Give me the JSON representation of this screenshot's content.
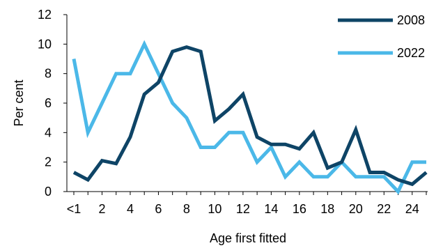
{
  "chart_data": {
    "type": "line",
    "x_tick_labels": [
      "<1",
      "2",
      "4",
      "6",
      "8",
      "10",
      "12",
      "14",
      "16",
      "18",
      "20",
      "22",
      "24"
    ],
    "xlabel": "Age first fitted",
    "ylabel": "Per cent",
    "ylim": [
      0,
      12
    ],
    "y_ticks": [
      0,
      2,
      4,
      6,
      8,
      10,
      12
    ],
    "grid": false,
    "legend_position": "top-right",
    "series": [
      {
        "name": "2008",
        "color": "#0e4466",
        "values": [
          1.3,
          0.8,
          2.1,
          1.9,
          3.7,
          6.6,
          7.4,
          9.5,
          9.8,
          9.5,
          4.8,
          5.6,
          6.6,
          3.7,
          3.2,
          3.2,
          2.9,
          4.0,
          1.6,
          2.0,
          4.2,
          1.3,
          1.3,
          0.8,
          0.5,
          1.3
        ]
      },
      {
        "name": "2022",
        "color": "#4bb8e8",
        "values": [
          9.0,
          4.0,
          6.0,
          8.0,
          8.0,
          10.0,
          8.0,
          6.0,
          5.0,
          3.0,
          3.0,
          4.0,
          4.0,
          2.0,
          3.0,
          1.0,
          2.0,
          1.0,
          1.0,
          2.0,
          1.0,
          1.0,
          1.0,
          0.0,
          2.0,
          2.0
        ]
      }
    ]
  }
}
